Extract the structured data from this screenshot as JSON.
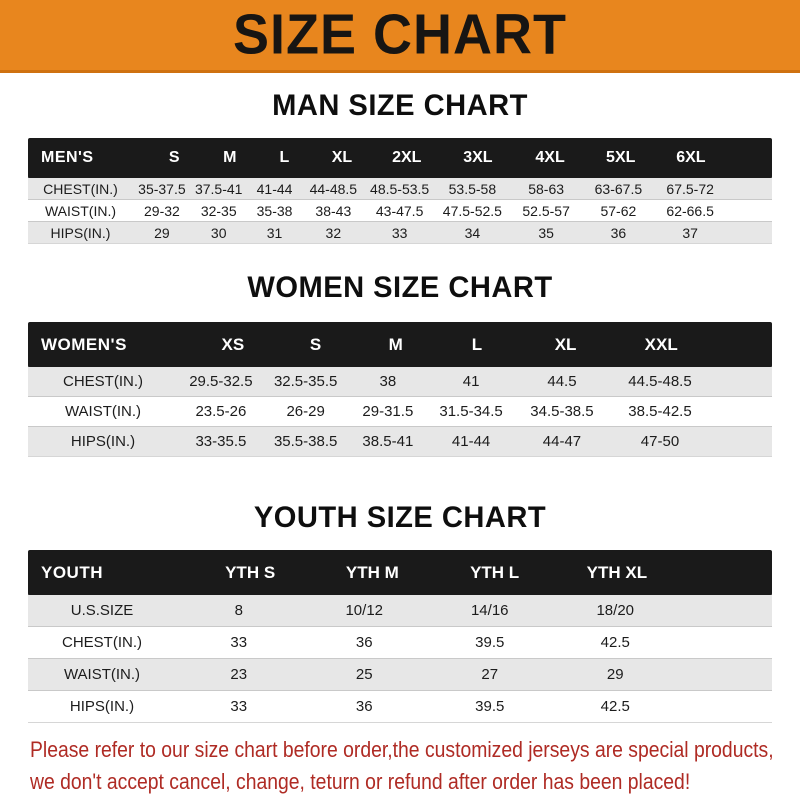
{
  "banner": {
    "title": "SIZE CHART"
  },
  "colors": {
    "banner_orange": "#E8861E",
    "header_black": "#1A1A1A",
    "stripe_gray": "#E7E7E7",
    "footer_red": "#AF2B24"
  },
  "men": {
    "heading": "MAN SIZE CHART",
    "header_label": "MEN'S",
    "sizes": [
      "S",
      "M",
      "L",
      "XL",
      "2XL",
      "3XL",
      "4XL",
      "5XL",
      "6XL"
    ],
    "rows": [
      {
        "label": "CHEST(IN.)",
        "values": [
          "35-37.5",
          "37.5-41",
          "41-44",
          "44-48.5",
          "48.5-53.5",
          "53.5-58",
          "58-63",
          "63-67.5",
          "67.5-72"
        ]
      },
      {
        "label": "WAIST(IN.)",
        "values": [
          "29-32",
          "32-35",
          "35-38",
          "38-43",
          "43-47.5",
          "47.5-52.5",
          "52.5-57",
          "57-62",
          "62-66.5"
        ]
      },
      {
        "label": "HIPS(IN.)",
        "values": [
          "29",
          "30",
          "31",
          "32",
          "33",
          "34",
          "35",
          "36",
          "37"
        ]
      }
    ]
  },
  "women": {
    "heading": "WOMEN SIZE CHART",
    "header_label": "WOMEN'S",
    "sizes": [
      "XS",
      "S",
      "M",
      "L",
      "XL",
      "XXL"
    ],
    "rows": [
      {
        "label": "CHEST(IN.)",
        "values": [
          "29.5-32.5",
          "32.5-35.5",
          "38",
          "41",
          "44.5",
          "44.5-48.5"
        ]
      },
      {
        "label": "WAIST(IN.)",
        "values": [
          "23.5-26",
          "26-29",
          "29-31.5",
          "31.5-34.5",
          "34.5-38.5",
          "38.5-42.5"
        ]
      },
      {
        "label": "HIPS(IN.)",
        "values": [
          "33-35.5",
          "35.5-38.5",
          "38.5-41",
          "41-44",
          "44-47",
          "47-50"
        ]
      }
    ]
  },
  "youth": {
    "heading": "YOUTH SIZE CHART",
    "header_label": "YOUTH",
    "sizes": [
      "YTH S",
      "YTH M",
      "YTH L",
      "YTH XL"
    ],
    "rows": [
      {
        "label": "U.S.SIZE",
        "values": [
          "8",
          "10/12",
          "14/16",
          "18/20"
        ]
      },
      {
        "label": "CHEST(IN.)",
        "values": [
          "33",
          "36",
          "39.5",
          "42.5"
        ]
      },
      {
        "label": "WAIST(IN.)",
        "values": [
          "23",
          "25",
          "27",
          "29"
        ]
      },
      {
        "label": "HIPS(IN.)",
        "values": [
          "33",
          "36",
          "39.5",
          "42.5"
        ]
      }
    ]
  },
  "footer": {
    "line1": "Please refer to our size chart before order,the customized jerseys are special products,",
    "line2": "we don't accept cancel, change, teturn or refund after order has been placed!"
  }
}
